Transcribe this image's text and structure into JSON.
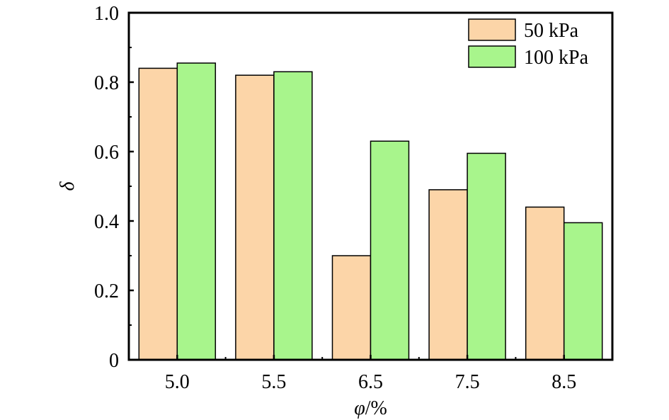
{
  "chart_data": {
    "type": "bar",
    "title": "",
    "xlabel_symbol": "φ",
    "xlabel_unit": "/%",
    "ylabel": "δ",
    "categories": [
      "5.0",
      "5.5",
      "6.5",
      "7.5",
      "8.5"
    ],
    "series": [
      {
        "name": "50 kPa",
        "color": "#fcd5a8",
        "values": [
          0.84,
          0.82,
          0.3,
          0.49,
          0.44
        ]
      },
      {
        "name": "100 kPa",
        "color": "#a8f58c",
        "values": [
          0.855,
          0.83,
          0.63,
          0.595,
          0.395
        ]
      }
    ],
    "ylim": [
      0,
      1.0
    ],
    "yticks": [
      0,
      0.2,
      0.4,
      0.6,
      0.8,
      1.0
    ],
    "ytick_labels": [
      "0",
      "0.2",
      "0.4",
      "0.6",
      "0.8",
      "1.0"
    ],
    "grid": false,
    "legend_position": "top-right"
  }
}
